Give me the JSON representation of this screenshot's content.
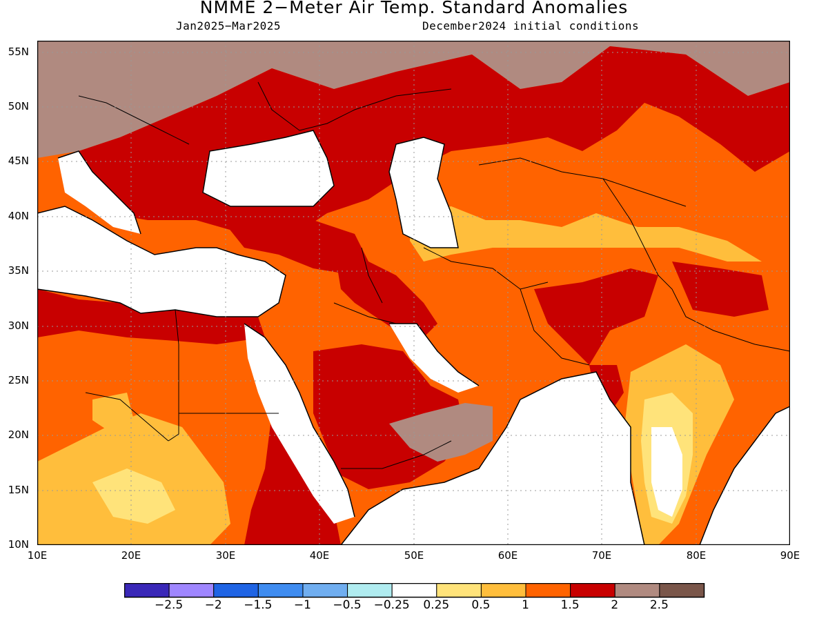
{
  "title": "NMME 2−Meter Air Temp. Standard Anomalies",
  "subtitle_left": "Jan2025−Mar2025",
  "subtitle_right": "December2024 initial conditions",
  "lat_labels": [
    "55N",
    "50N",
    "45N",
    "40N",
    "35N",
    "30N",
    "25N",
    "20N",
    "15N",
    "10N"
  ],
  "lon_labels": [
    "10E",
    "20E",
    "30E",
    "40E",
    "50E",
    "60E",
    "70E",
    "80E",
    "90E"
  ],
  "colorbar": {
    "colors": [
      "#3a28b8",
      "#9f86ff",
      "#1f64e4",
      "#3f8cf0",
      "#70aef0",
      "#b0ecf0",
      "#ffffff",
      "#ffe37a",
      "#ffbe3c",
      "#ff6300",
      "#c80000",
      "#b08a80",
      "#7a564a"
    ],
    "labels": [
      "−2.5",
      "−2",
      "−1.5",
      "−1",
      "−0.5",
      "−0.25",
      "0.25",
      "0.5",
      "1",
      "1.5",
      "2",
      "2.5"
    ]
  },
  "map": {
    "extent": {
      "lon": [
        10,
        90
      ],
      "lat": [
        10,
        56
      ]
    },
    "category_colors": {
      "white": "#ffffff",
      "yellow": "#ffe37a",
      "light_orange": "#ffbe3c",
      "orange": "#ff6300",
      "red": "#c80000",
      "brown": "#b08a80"
    }
  }
}
